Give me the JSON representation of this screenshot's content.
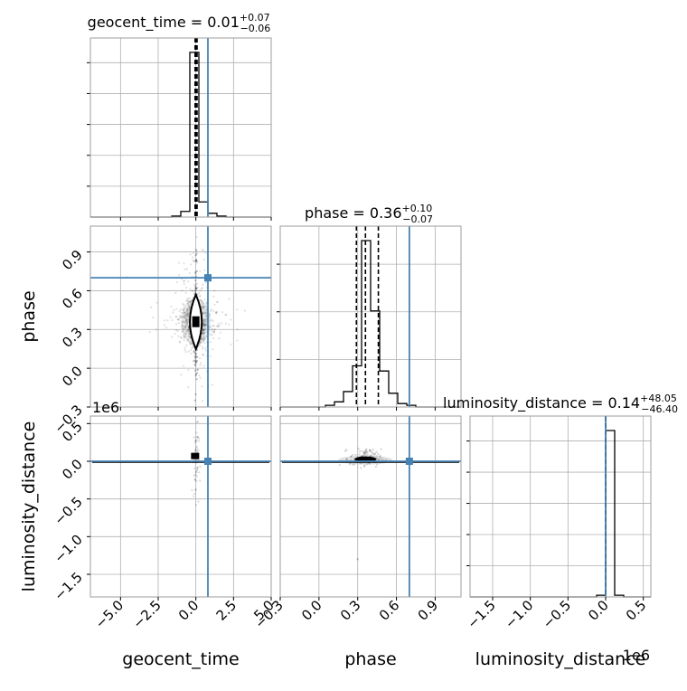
{
  "colors": {
    "truth": "#4682b4",
    "hist": "#000000",
    "grid": "#b0b0b0",
    "scatter": "#000000"
  },
  "chart_data": {
    "type": "corner",
    "parameters": [
      "geocent_time",
      "phase",
      "luminosity_distance"
    ],
    "truths": {
      "geocent_time": 0.8,
      "phase": 0.7,
      "luminosity_distance": 0
    },
    "ranges": {
      "geocent_time": [
        -7,
        5
      ],
      "phase": [
        -0.3,
        1.1
      ],
      "luminosity_distance": [
        -1800000,
        600000
      ]
    },
    "titles": {
      "geocent_time": {
        "prefix": "geocent_time = ",
        "value": "0.01",
        "plus": "+0.07",
        "minus": "−0.06"
      },
      "phase": {
        "prefix": "phase = ",
        "value": "0.36",
        "plus": "+0.10",
        "minus": "−0.07"
      },
      "luminosity_distance": {
        "prefix": "luminosity_distance = ",
        "value": "0.14",
        "plus": "+48.05",
        "minus": "−46.40"
      }
    },
    "quantiles": {
      "geocent_time": [
        -0.05,
        0.01,
        0.08
      ],
      "phase": [
        0.29,
        0.36,
        0.46
      ],
      "luminosity_distance": [
        -46.4,
        0.14,
        48.05
      ]
    },
    "ticks": {
      "geocent_time": {
        "values": [
          -5,
          -2.5,
          0,
          2.5,
          5
        ],
        "labels": [
          "−5.0",
          "−2.5",
          "0.0",
          "2.5",
          "5.0"
        ]
      },
      "phase": {
        "values": [
          -0.3,
          0,
          0.3,
          0.6,
          0.9
        ],
        "labels": [
          "−0.3",
          "0.0",
          "0.3",
          "0.6",
          "0.9"
        ]
      },
      "luminosity_distance_y": {
        "values": [
          -1.5,
          -1.0,
          -0.5,
          0.0,
          0.5
        ],
        "labels": [
          "−1.5",
          "−1.0",
          "−0.5",
          "0.0",
          "0.5"
        ]
      },
      "luminosity_distance_x": {
        "values": [
          -1.5,
          -1.0,
          -0.5,
          0.0,
          0.5
        ],
        "labels": [
          "−1.5",
          "−1.0",
          "−0.5",
          "0.0",
          "0.5"
        ]
      }
    },
    "offset_label": "1e6",
    "axis_labels": {
      "geocent_time": "geocent_time",
      "phase": "phase",
      "luminosity_distance": "luminosity_distance"
    },
    "histograms": {
      "geocent_time": {
        "edges": [
          -7,
          -6.4,
          -5.8,
          -5.2,
          -4.6,
          -4.0,
          -3.4,
          -2.8,
          -2.2,
          -1.6,
          -1.0,
          -0.4,
          0.2,
          0.8,
          1.4,
          2.0,
          2.6,
          3.2,
          3.8,
          4.4,
          5.0
        ],
        "counts": [
          0,
          0,
          0,
          0,
          0,
          0,
          0,
          0,
          0,
          0.005,
          0.03,
          0.87,
          0.08,
          0.02,
          0.005,
          0,
          0,
          0,
          0,
          0
        ]
      },
      "phase": {
        "edges": [
          -0.3,
          -0.23,
          -0.16,
          -0.09,
          -0.02,
          0.05,
          0.12,
          0.19,
          0.26,
          0.33,
          0.4,
          0.47,
          0.54,
          0.61,
          0.68,
          0.75,
          0.82,
          0.89,
          0.96,
          1.03,
          1.1
        ],
        "counts": [
          0,
          0,
          0,
          0,
          0,
          0.01,
          0.03,
          0.09,
          0.24,
          0.97,
          0.56,
          0.21,
          0.08,
          0.02,
          0.01,
          0,
          0,
          0,
          0,
          0
        ]
      },
      "luminosity_distance": {
        "edges": [
          -1800000,
          -1680000,
          -1560000,
          -1440000,
          -1320000,
          -1200000,
          -1080000,
          -960000,
          -840000,
          -720000,
          -600000,
          -480000,
          -360000,
          -240000,
          -120000,
          0,
          120000,
          240000,
          360000,
          480000,
          600000
        ],
        "counts": [
          0,
          0,
          0,
          0,
          0,
          0,
          0,
          0,
          0,
          0,
          0,
          0,
          0,
          0,
          0.01,
          0.97,
          0.01,
          0,
          0,
          0
        ]
      }
    },
    "density": {
      "phase_vs_geocent_time": {
        "center_x": 0.0,
        "center_y": 0.36,
        "contour_half_width_x": 0.35,
        "contour_half_height_y": 0.14
      },
      "luminosity_distance_vs_geocent_time": {
        "center_x": 0.0,
        "center_y": 40000
      },
      "luminosity_distance_vs_phase": {
        "center_x": 0.36,
        "center_y": 40000
      }
    }
  }
}
